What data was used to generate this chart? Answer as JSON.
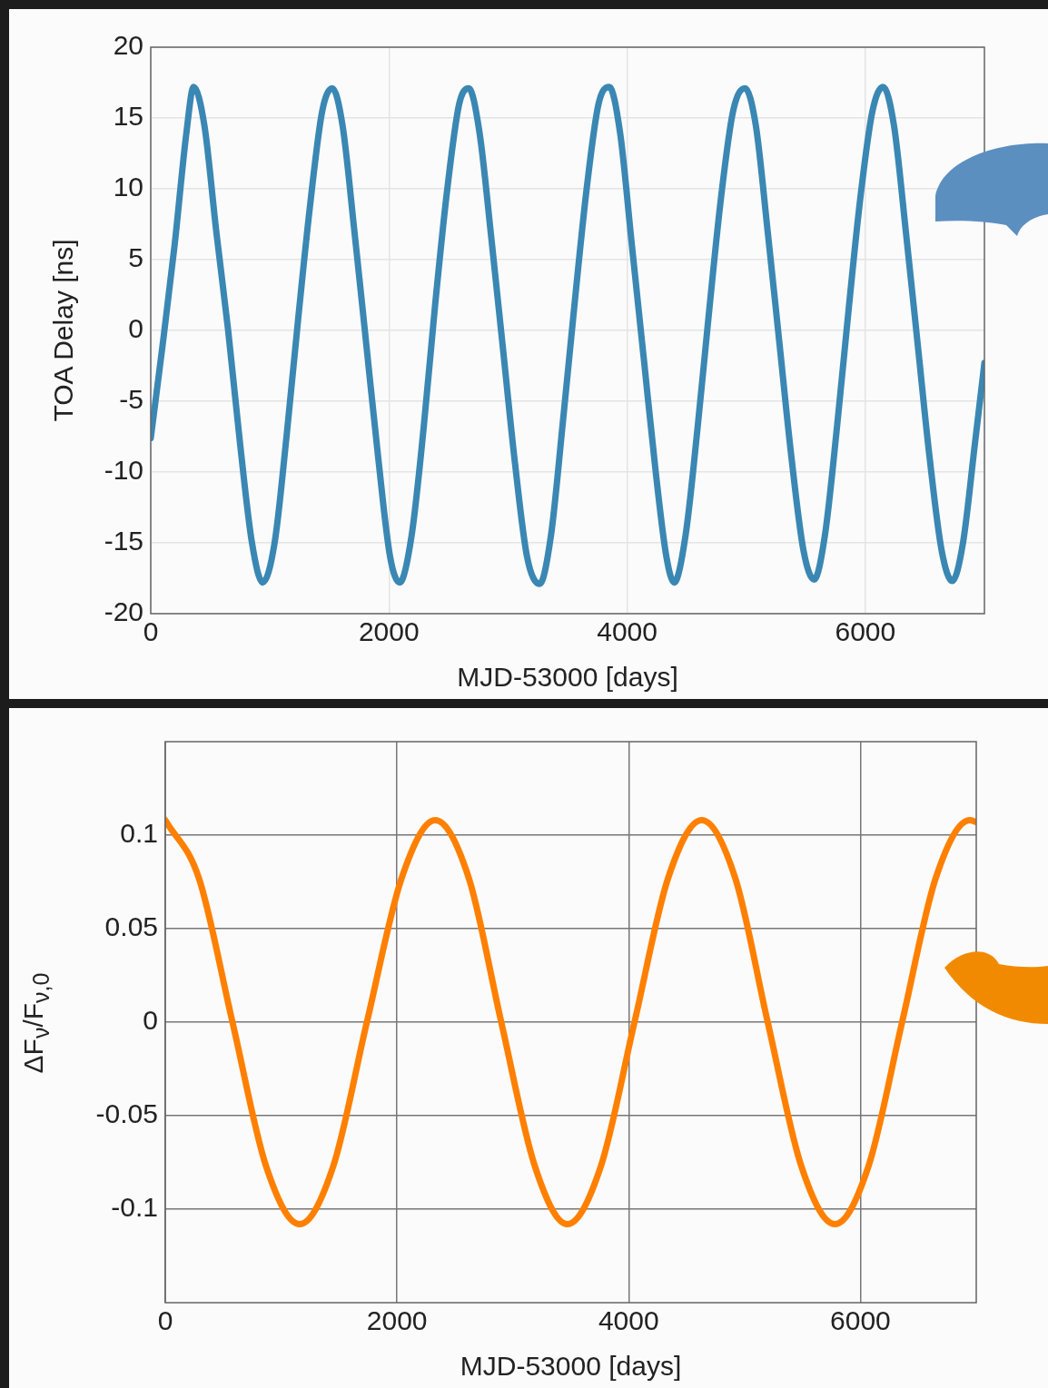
{
  "chart_data": [
    {
      "type": "line",
      "xlabel": "MJD-53000 [days]",
      "ylabel": "TOA Delay [ns]",
      "xlim": [
        0,
        7000
      ],
      "ylim": [
        -20,
        20
      ],
      "xticks": [
        0,
        2000,
        4000,
        6000
      ],
      "yticks": [
        -20,
        -15,
        -10,
        -5,
        0,
        5,
        10,
        15,
        20
      ],
      "grid": true,
      "marker": "none",
      "line_style": "solid",
      "x": [
        0,
        100,
        200,
        300,
        360,
        450,
        550,
        650,
        750,
        850,
        940,
        1040,
        1140,
        1240,
        1340,
        1440,
        1525,
        1610,
        1710,
        1810,
        1910,
        2010,
        2090,
        2190,
        2290,
        2390,
        2490,
        2590,
        2670,
        2760,
        2860,
        2960,
        3060,
        3160,
        3265,
        3360,
        3460,
        3560,
        3660,
        3760,
        3850,
        3940,
        4040,
        4140,
        4240,
        4330,
        4395,
        4490,
        4590,
        4690,
        4790,
        4890,
        4990,
        5080,
        5180,
        5280,
        5380,
        5480,
        5570,
        5660,
        5760,
        5860,
        5960,
        6060,
        6150,
        6240,
        6340,
        6440,
        6540,
        6640,
        6730,
        6820,
        6920,
        7000
      ],
      "series": [
        {
          "color": "#3a87b3",
          "values": [
            -7.6,
            -1,
            6,
            14,
            17.2,
            14.5,
            7,
            0,
            -8,
            -15,
            -17.8,
            -15,
            -7.5,
            1,
            9,
            15.5,
            17.1,
            14.5,
            7,
            -1,
            -9,
            -16,
            -17.8,
            -14.5,
            -7,
            2,
            10,
            16,
            17.1,
            14,
            6.5,
            -1.5,
            -9.5,
            -16,
            -17.9,
            -14.5,
            -6.5,
            2,
            10,
            16,
            17.2,
            14,
            6,
            -2,
            -10,
            -16,
            -17.8,
            -14.5,
            -7,
            1.5,
            9.5,
            15.5,
            17.1,
            14.5,
            7,
            -1,
            -9,
            -15.5,
            -17.6,
            -14.5,
            -7,
            1.5,
            9.5,
            15.5,
            17.2,
            14.5,
            7,
            -1,
            -9,
            -15.5,
            -17.7,
            -15,
            -8,
            -2.3
          ]
        }
      ]
    },
    {
      "type": "line",
      "xlabel": "MJD-53000 [days]",
      "ylabel": "ΔF$_{ν}$/F$_{ν,0}$",
      "xlim": [
        0,
        7000
      ],
      "ylim": [
        -0.15,
        0.15
      ],
      "xticks": [
        0,
        2000,
        4000,
        6000
      ],
      "yticks": [
        -0.1,
        -0.05,
        0,
        0.05,
        0.1
      ],
      "grid": true,
      "marker": "none",
      "line_style": "solid",
      "x": [
        0,
        290,
        580,
        870,
        1160,
        1450,
        1740,
        2040,
        2330,
        2620,
        2900,
        3190,
        3470,
        3760,
        4050,
        4340,
        4630,
        4920,
        5200,
        5490,
        5780,
        6070,
        6360,
        6650,
        6945,
        7000
      ],
      "series": [
        {
          "color": "#ff8000",
          "values": [
            0.108,
            0.077,
            0,
            -0.077,
            -0.108,
            -0.077,
            0,
            0.077,
            0.108,
            0.077,
            0,
            -0.077,
            -0.108,
            -0.077,
            0,
            0.077,
            0.108,
            0.077,
            0,
            -0.077,
            -0.108,
            -0.077,
            0,
            0.077,
            0.108,
            0.107
          ]
        }
      ]
    }
  ]
}
